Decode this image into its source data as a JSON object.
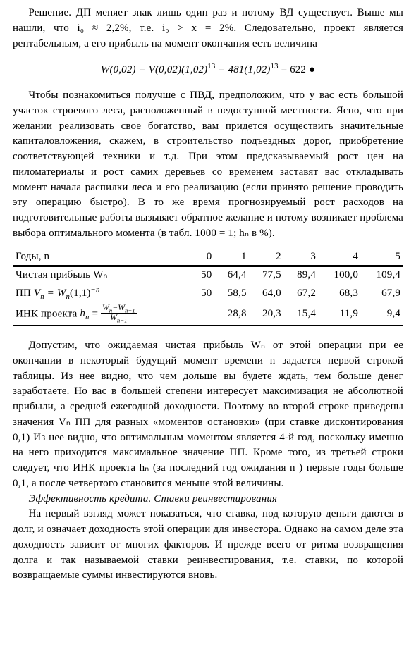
{
  "document": {
    "p1": "Решение. ДП меняет знак лишь один раз и потому ВД существует. Выше мы нашли, что  i₀ ≈ 2,2%, т.е.  i₀ > x = 2%. Следовательно, проект является рентабельным, а его прибыль на момент окончания есть величина",
    "formula_before": "W(0,02) = V(0,02)(1,02)",
    "formula_exp1": "13",
    "formula_mid": " = 481(1,02)",
    "formula_exp2": "13",
    "formula_after": " = 622 ●",
    "p2": "Чтобы познакомиться получше с ПВД, предположим, что у вас есть большой участок строевого леса, расположенный в недоступной местности. Ясно, что при желании реализовать свое богатство, вам придется осуществить значительные капиталовложения, скажем, в строительство подъездных дорог, приобретение соответствующей техники и т.д. При этом предсказываемый рост цен на пиломатериалы и рост самих деревьев со временем заставят вас откладывать момент начала распилки леса и его реализацию (если принято решение проводить эту операцию быстро). В то же время прогнозируемый рост расходов на подготовительные работы вызывает обратное желание и потому возникает проблема выбора оптимального момента (в табл. 1000 = 1;  hₙ  в %).",
    "table": {
      "head": {
        "label": "Годы, n",
        "c0": "0",
        "c1": "1",
        "c2": "2",
        "c3": "3",
        "c4": "4",
        "c5": "5"
      },
      "r1": {
        "label": "Чистая прибыль Wₙ",
        "c0": "50",
        "c1": "64,4",
        "c2": "77,5",
        "c3": "89,4",
        "c4": "100,0",
        "c5": "109,4"
      },
      "r2": {
        "label_pre": "ПП ",
        "label_post": "",
        "c0": "50",
        "c1": "58,5",
        "c2": "64,0",
        "c3": "67,2",
        "c4": "68,3",
        "c5": "67,9"
      },
      "r3": {
        "label_pre": "ИНК проекта ",
        "label_post": "",
        "c0": "",
        "c1": "28,8",
        "c2": "20,3",
        "c3": "15,4",
        "c4": "11,9",
        "c5": "9,4"
      }
    },
    "p3": "Допустим, что ожидаемая чистая прибыль  Wₙ  от этой операции при ее окончании в некоторый будущий момент времени  n  задается первой строкой таблицы. Из нее видно, что чем дольше вы будете ждать, тем больше денег заработаете. Но вас в большей степени интересует максимизация не абсолютной прибыли, а средней ежегодной доходности. Поэтому во второй строке приведены значения  Vₙ  ПП для разных «моментов остановки» (при ставке дисконтирования 0,1) Из нее видно, что оптимальным моментом является 4-й год, поскольку именно на него приходится максимальное значение ПП. Кроме того, из третьей строки следует, что ИНК проекта  hₙ  (за последний год ожидания  n ) первые годы больше 0,1, а после четвертого становится меньше этой величины.",
    "section_title": "Эффективность кредита. Ставки реинвестирования",
    "p4": "На первый взгляд может показаться, что ставка, под которую деньги даются в долг, и означает доходность этой операции для инвестора. Однако на самом деле эта доходность зависит от многих факторов. И прежде всего от ритма возвращения долга и так называемой ставки реинвестирования, т.е. ставки, по которой возвращаемые суммы инвестируются вновь."
  }
}
